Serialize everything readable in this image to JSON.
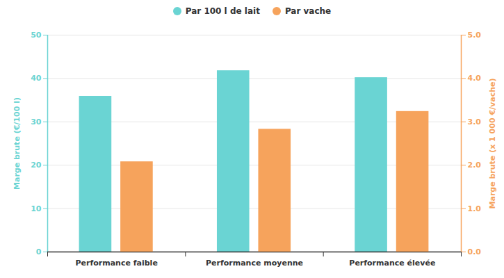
{
  "chart_data": {
    "type": "bar",
    "categories": [
      "Performance faible",
      "Performance moyenne",
      "Performance élevée"
    ],
    "series": [
      {
        "name": "Par 100 l de lait",
        "color": "#6ad4d3",
        "values": [
          35.9,
          41.8,
          40.2
        ]
      },
      {
        "name": "Par vache",
        "color": "#f6a35c",
        "values": [
          2.08,
          2.83,
          3.24
        ],
        "axis": "y2"
      }
    ],
    "ylabel": "Marge brute (€/100 l)",
    "y2label": "Marge brute (x 1 000 €/vache)",
    "ylim": [
      0,
      50
    ],
    "yticks": [
      0,
      10,
      20,
      30,
      40,
      50
    ],
    "y2lim": [
      0,
      5
    ],
    "y2ticks": [
      0,
      1,
      2,
      3,
      4,
      5
    ],
    "grid": true,
    "legend": "top"
  }
}
